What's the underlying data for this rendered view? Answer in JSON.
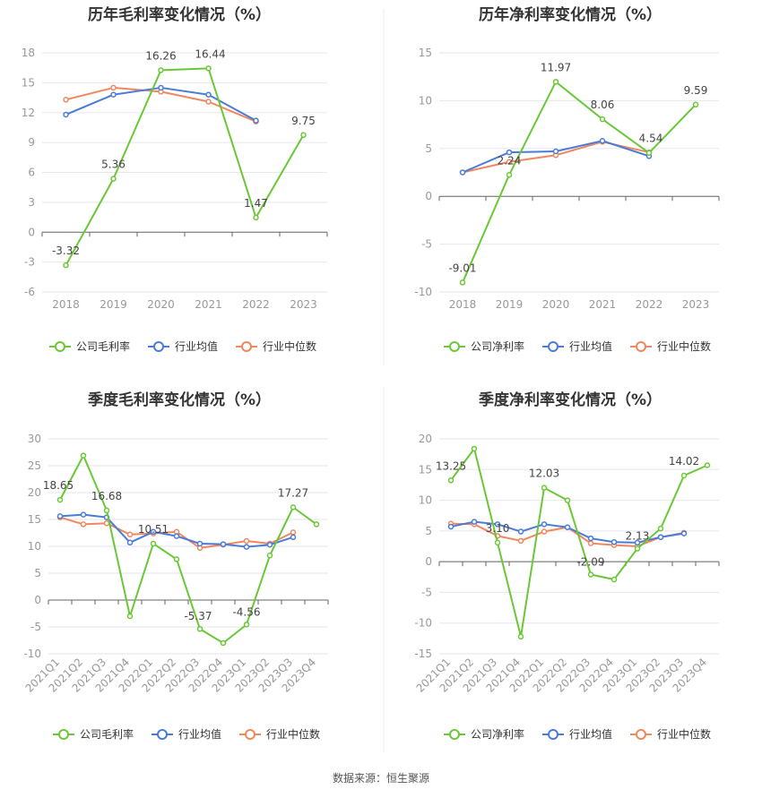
{
  "source": "数据来源：恒生聚源",
  "colors": {
    "company": "#6bc736",
    "avg": "#4a7bd8",
    "median": "#f0875e",
    "grid": "#e6e6ee",
    "axis": "#666666",
    "text": "#999999"
  },
  "chart_data": [
    {
      "type": "line",
      "title": "历年毛利率变化情况（%）",
      "x": [
        "2018",
        "2019",
        "2020",
        "2021",
        "2022",
        "2023"
      ],
      "yticks": [
        -6,
        -3,
        0,
        3,
        6,
        9,
        12,
        15,
        18
      ],
      "ylim": [
        -6,
        18
      ],
      "legend": [
        "公司毛利率",
        "行业均值",
        "行业中位数"
      ],
      "series": [
        {
          "name": "公司毛利率",
          "key": "company",
          "values": [
            -3.32,
            5.36,
            16.26,
            16.44,
            1.47,
            9.75
          ],
          "labels": [
            "-3.32",
            "5.36",
            "16.26",
            "16.44",
            "1.47",
            "9.75"
          ]
        },
        {
          "name": "行业均值",
          "key": "avg",
          "values": [
            11.8,
            13.8,
            14.5,
            13.8,
            11.2,
            null
          ]
        },
        {
          "name": "行业中位数",
          "key": "median",
          "values": [
            13.3,
            14.5,
            14.1,
            13.1,
            11.1,
            null
          ]
        }
      ]
    },
    {
      "type": "line",
      "title": "历年净利率变化情况（%）",
      "x": [
        "2018",
        "2019",
        "2020",
        "2021",
        "2022",
        "2023"
      ],
      "yticks": [
        -10,
        -5,
        0,
        5,
        10,
        15
      ],
      "ylim": [
        -10,
        15
      ],
      "legend": [
        "公司净利率",
        "行业均值",
        "行业中位数"
      ],
      "series": [
        {
          "name": "公司净利率",
          "key": "company",
          "values": [
            -9.01,
            2.24,
            11.97,
            8.06,
            4.54,
            9.59
          ],
          "labels": [
            "-9.01",
            "2.24",
            "11.97",
            "8.06",
            "4.54",
            "9.59"
          ]
        },
        {
          "name": "行业均值",
          "key": "avg",
          "values": [
            2.5,
            4.6,
            4.7,
            5.8,
            4.2,
            null
          ]
        },
        {
          "name": "行业中位数",
          "key": "median",
          "values": [
            2.5,
            3.6,
            4.3,
            5.7,
            4.6,
            null
          ]
        }
      ]
    },
    {
      "type": "line",
      "title": "季度毛利率变化情况（%）",
      "x": [
        "2021Q1",
        "2021Q2",
        "2021Q3",
        "2021Q4",
        "2022Q1",
        "2022Q2",
        "2022Q3",
        "2022Q4",
        "2023Q1",
        "2023Q2",
        "2023Q3",
        "2023Q4"
      ],
      "yticks": [
        -10,
        -5,
        0,
        5,
        10,
        15,
        20,
        25,
        30
      ],
      "ylim": [
        -10,
        30
      ],
      "legend": [
        "公司毛利率",
        "行业均值",
        "行业中位数"
      ],
      "series": [
        {
          "name": "公司毛利率",
          "key": "company",
          "values": [
            18.65,
            26.9,
            16.68,
            -3.0,
            10.51,
            7.6,
            -5.37,
            -8.0,
            -4.56,
            8.3,
            17.27,
            14.1
          ],
          "labels": [
            "18.65",
            null,
            "16.68",
            null,
            "10.51",
            null,
            "-5.37",
            null,
            "-4.56",
            null,
            "17.27",
            null
          ]
        },
        {
          "name": "行业均值",
          "key": "avg",
          "values": [
            15.6,
            15.9,
            15.4,
            10.7,
            12.7,
            11.9,
            10.5,
            10.4,
            9.9,
            10.3,
            11.7,
            null
          ]
        },
        {
          "name": "行业中位数",
          "key": "median",
          "values": [
            15.4,
            14.1,
            14.3,
            12.2,
            12.4,
            12.7,
            9.7,
            10.3,
            11.0,
            10.5,
            12.6,
            null
          ]
        }
      ]
    },
    {
      "type": "line",
      "title": "季度净利率变化情况（%）",
      "x": [
        "2021Q1",
        "2021Q2",
        "2021Q3",
        "2021Q4",
        "2022Q1",
        "2022Q2",
        "2022Q3",
        "2022Q4",
        "2023Q1",
        "2023Q2",
        "2023Q3",
        "2023Q4"
      ],
      "yticks": [
        -15,
        -10,
        -5,
        0,
        5,
        10,
        15,
        20
      ],
      "ylim": [
        -15,
        20
      ],
      "legend": [
        "公司净利率",
        "行业均值",
        "行业中位数"
      ],
      "series": [
        {
          "name": "公司净利率",
          "key": "company",
          "values": [
            13.25,
            18.4,
            3.1,
            -12.2,
            12.03,
            10.0,
            -2.09,
            -2.9,
            2.13,
            5.4,
            14.02,
            15.7
          ],
          "labels": [
            "13.25",
            null,
            "3.10",
            null,
            "12.03",
            null,
            "-2.09",
            null,
            "2.13",
            null,
            "14.02",
            null
          ]
        },
        {
          "name": "行业均值",
          "key": "avg",
          "values": [
            5.7,
            6.5,
            6.1,
            4.9,
            6.1,
            5.6,
            3.8,
            3.2,
            3.1,
            4.0,
            4.6,
            null
          ]
        },
        {
          "name": "行业中位数",
          "key": "median",
          "values": [
            6.2,
            6.1,
            4.2,
            3.4,
            4.9,
            5.6,
            3.0,
            2.7,
            2.5,
            4.0,
            4.7,
            null
          ]
        }
      ]
    }
  ]
}
